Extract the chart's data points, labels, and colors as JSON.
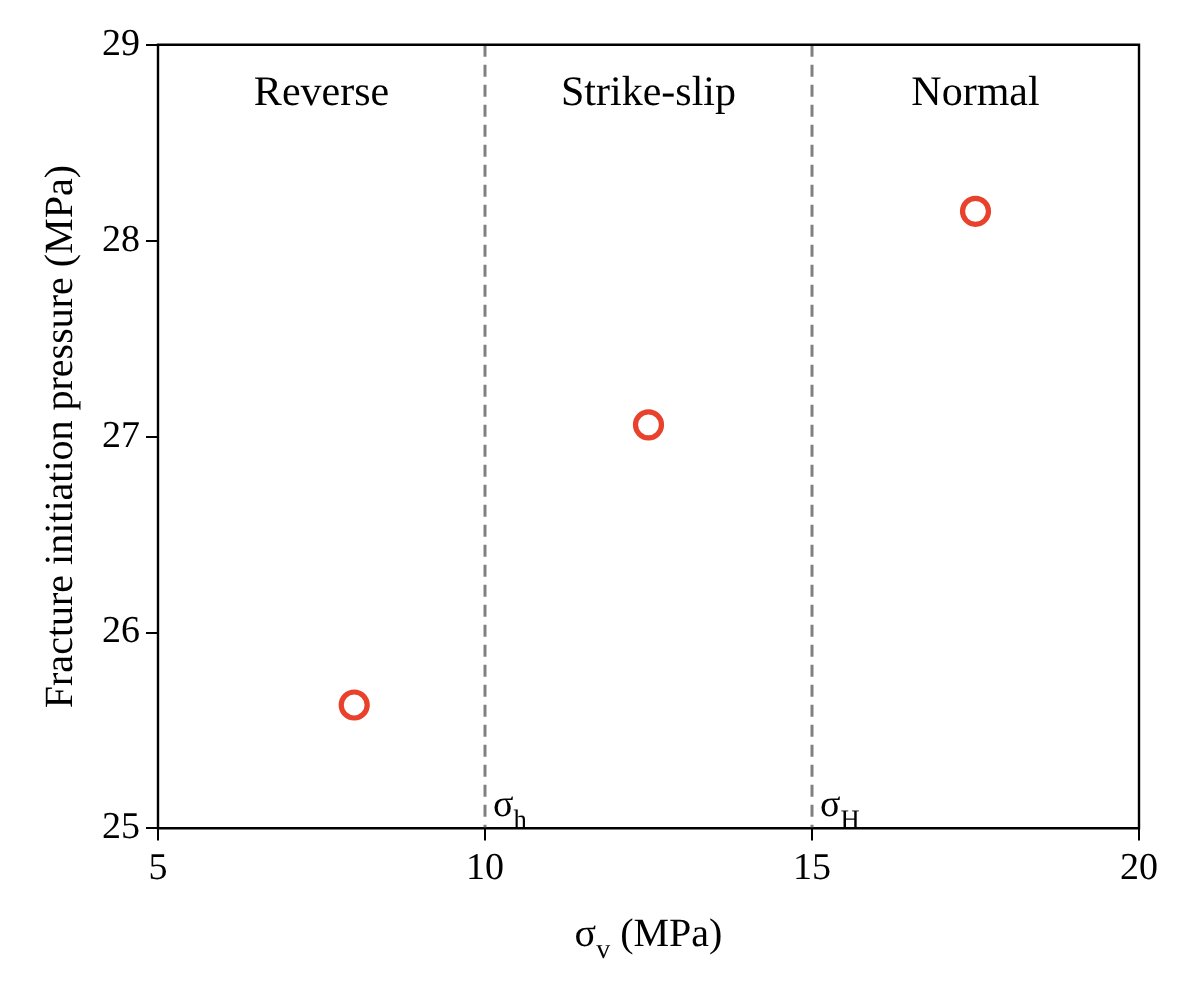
{
  "chart_data": {
    "type": "scatter",
    "xlabel": "σ$_{v}$ (MPa)",
    "ylabel": "Fracture initiation pressure (MPa)",
    "x": [
      8,
      12.5,
      17.5
    ],
    "series": [
      {
        "color": "#e8412c",
        "values": [
          25.63,
          27.06,
          28.15
        ]
      }
    ],
    "xlim": [
      5,
      20
    ],
    "xticks": [
      5,
      10,
      15,
      20
    ],
    "ylim": [
      25,
      29
    ],
    "yticks": [
      25,
      26,
      27,
      28,
      29
    ],
    "grid": false,
    "legend": false,
    "marker": "circle",
    "ref_lines": [
      {
        "axis": "x",
        "value": 10,
        "label": "σ$_{h}$",
        "color": "#808080",
        "line_style": "dashed"
      },
      {
        "axis": "x",
        "value": 15,
        "label": "σ$_{H}$",
        "color": "#808080",
        "line_style": "dashed"
      }
    ],
    "annotations": [
      "Reverse",
      "Strike-slip",
      "Normal"
    ]
  }
}
